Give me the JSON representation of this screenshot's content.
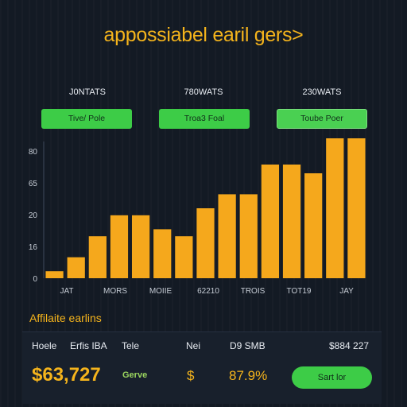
{
  "title": "appossiabel earil gers>",
  "stats": [
    {
      "heading": "J0NTATS",
      "button": "Tive/ Pole"
    },
    {
      "heading": "780WATS",
      "button": "Troa3 Foal"
    },
    {
      "heading": "230WATS",
      "button": "Toube Poer"
    }
  ],
  "chart_data": {
    "type": "bar",
    "title": "",
    "xlabel": "",
    "ylabel": "",
    "ytick_labels": [
      "0",
      "16",
      "20",
      "65",
      "80"
    ],
    "ylim": [
      0,
      80
    ],
    "xtick_labels": [
      "JAT",
      "MORS",
      "MOIIE",
      "62210",
      "TROIS",
      "TOT19",
      "JAY"
    ],
    "values": [
      4,
      12,
      24,
      36,
      36,
      28,
      24,
      40,
      48,
      48,
      65,
      65,
      60,
      80,
      80
    ],
    "accent_color": "#f5a81c",
    "grid": false
  },
  "earnings": {
    "label": "Affilaite earlins",
    "headers": [
      "Hoele",
      "Erfis IBA",
      "Tele",
      "Nei",
      "D9 SMB",
      "$884 227"
    ],
    "total": "$63,727",
    "tag": "Gerve",
    "currency": "$",
    "percent": "87.9%",
    "action": "Sart lor"
  }
}
